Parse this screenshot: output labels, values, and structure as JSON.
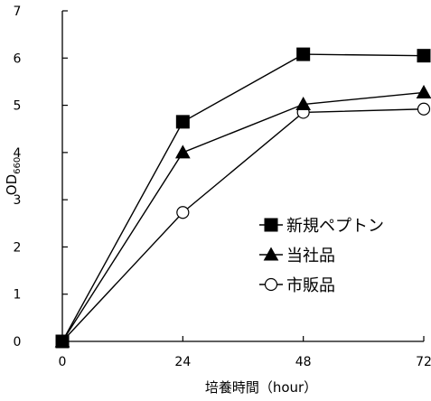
{
  "chart_data": {
    "type": "line",
    "xlabel": "培養時間（hour）",
    "ylabel": "OD",
    "ylabel_sub": "660",
    "xlim": [
      0,
      72
    ],
    "ylim": [
      0,
      7
    ],
    "x_ticks": [
      0,
      24,
      48,
      72
    ],
    "y_ticks": [
      0,
      1,
      2,
      3,
      4,
      5,
      6,
      7
    ],
    "grid": false,
    "legend_position": "bottom-right",
    "x": [
      0,
      24,
      48,
      72
    ],
    "series": [
      {
        "name": "新規ペプトン",
        "marker": "square",
        "fill": "filled",
        "values": [
          0,
          4.65,
          6.08,
          6.05
        ]
      },
      {
        "name": "当社品",
        "marker": "triangle",
        "fill": "filled",
        "values": [
          0,
          4.0,
          5.02,
          5.27
        ]
      },
      {
        "name": "市販品",
        "marker": "circle",
        "fill": "open",
        "values": [
          0,
          2.73,
          4.85,
          4.92
        ]
      }
    ],
    "colors": {
      "line": "#000000",
      "marker_fill": "#000000",
      "open_marker_fill": "#ffffff"
    }
  }
}
